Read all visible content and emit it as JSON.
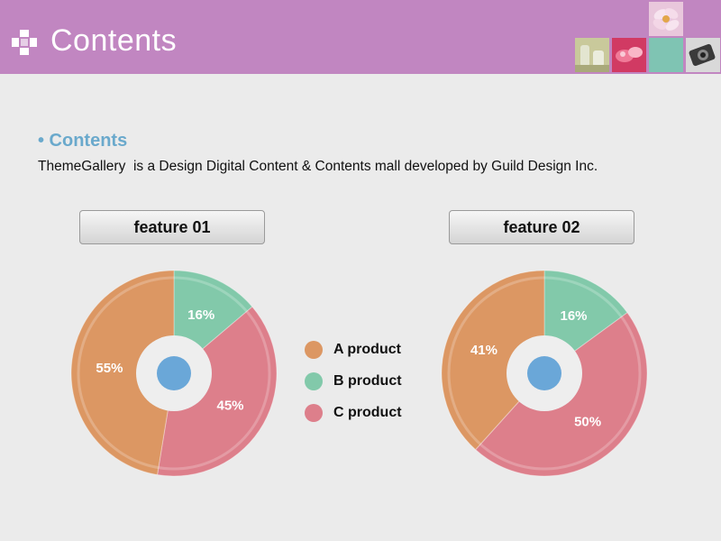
{
  "header": {
    "title": "Contents"
  },
  "section": {
    "title": "• Contents",
    "description": "ThemeGallery  is a Design Digital Content & Contents mall developed by Guild Design Inc."
  },
  "colors": {
    "header_bg": "#c186c1",
    "a_product": "#dc9763",
    "b_product": "#82c9aa",
    "c_product": "#dd7f8b",
    "center": "#6aa7d8"
  },
  "chart_data": [
    {
      "type": "pie",
      "title": "feature 01",
      "categories": [
        "A product",
        "B product",
        "C product"
      ],
      "values": [
        55,
        16,
        45
      ],
      "labels": [
        "55%",
        "16%",
        "45%"
      ]
    },
    {
      "type": "pie",
      "title": "feature 02",
      "categories": [
        "A product",
        "B product",
        "C product"
      ],
      "values": [
        41,
        16,
        50
      ],
      "labels": [
        "41%",
        "16%",
        "50%"
      ]
    }
  ],
  "legend": [
    {
      "label": "A product",
      "color": "#dc9763"
    },
    {
      "label": "B product",
      "color": "#82c9aa"
    },
    {
      "label": "C product",
      "color": "#dd7f8b"
    }
  ]
}
